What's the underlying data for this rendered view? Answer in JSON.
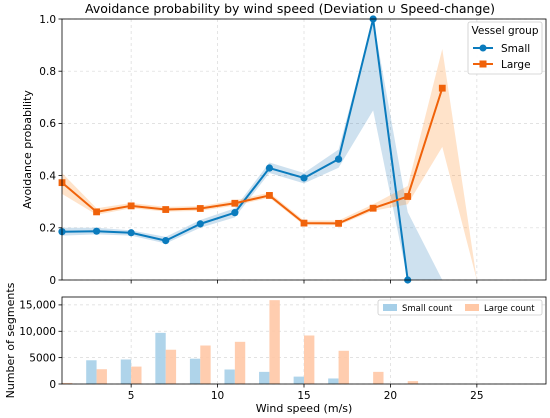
{
  "chart_data": [
    {
      "type": "line",
      "title": "Avoidance probability by wind speed (Deviation ∪ Speed-change)",
      "xlabel": "",
      "ylabel": "Avoidance probability",
      "xlim": [
        1,
        29
      ],
      "ylim": [
        0,
        1.0
      ],
      "x_ticks": [
        "5",
        "10",
        "15",
        "20",
        "25"
      ],
      "y_ticks": [
        "0",
        "0.2",
        "0.4",
        "0.6",
        "0.8",
        "1.0"
      ],
      "grid": true,
      "legend": {
        "title": "Vessel group",
        "placement": "top-right"
      },
      "series": [
        {
          "name": "Small",
          "color": "#1f77b4",
          "line_color": "#0a7bbd",
          "marker": "circle",
          "x": [
            1,
            3,
            5,
            7,
            9,
            11,
            13,
            15,
            17,
            19,
            21
          ],
          "values": [
            0.185,
            0.187,
            0.181,
            0.151,
            0.215,
            0.258,
            0.429,
            0.391,
            0.463,
            1.0,
            0.0
          ],
          "ci_x": [
            1,
            3,
            5,
            7,
            9,
            11,
            13,
            15,
            17,
            19,
            21,
            23
          ],
          "ci_lower": [
            0.17,
            0.175,
            0.17,
            0.14,
            0.2,
            0.24,
            0.41,
            0.37,
            0.43,
            0.65,
            0.0,
            0.0
          ],
          "ci_upper": [
            0.2,
            0.2,
            0.19,
            0.165,
            0.23,
            0.275,
            0.45,
            0.41,
            0.5,
            1.0,
            0.26,
            0.0
          ]
        },
        {
          "name": "Large",
          "color": "#ff7f0e",
          "line_color": "#f0620a",
          "marker": "square",
          "x": [
            1,
            3,
            5,
            7,
            9,
            11,
            13,
            15,
            17,
            19,
            21,
            23
          ],
          "values": [
            0.373,
            0.261,
            0.284,
            0.27,
            0.274,
            0.294,
            0.324,
            0.218,
            0.217,
            0.275,
            0.32,
            0.735
          ],
          "ci_x": [
            1,
            3,
            5,
            7,
            9,
            11,
            13,
            15,
            17,
            19,
            21,
            23,
            25
          ],
          "ci_lower": [
            0.33,
            0.25,
            0.275,
            0.262,
            0.265,
            0.285,
            0.315,
            0.21,
            0.21,
            0.265,
            0.29,
            0.51,
            0.0
          ],
          "ci_upper": [
            0.41,
            0.275,
            0.295,
            0.28,
            0.283,
            0.305,
            0.335,
            0.228,
            0.228,
            0.29,
            0.36,
            0.885,
            0.0
          ]
        }
      ]
    },
    {
      "type": "bar",
      "title": "",
      "xlabel": "Wind speed (m/s)",
      "ylabel": "Number of segments",
      "xlim": [
        1,
        29
      ],
      "ylim": [
        0,
        16500
      ],
      "x_ticks": [
        "5",
        "10",
        "15",
        "20",
        "25"
      ],
      "y_ticks": [
        "0",
        "5000",
        "10,000",
        "15,000"
      ],
      "grid": true,
      "legend": {
        "placement": "top-right"
      },
      "x": [
        1,
        3,
        5,
        7,
        9,
        11,
        13,
        15,
        17,
        19,
        21
      ],
      "series": [
        {
          "name": "Small count",
          "color": "#a6cfe8",
          "values": [
            0,
            4500,
            4650,
            9700,
            4800,
            2750,
            2300,
            1400,
            1050,
            0,
            0
          ]
        },
        {
          "name": "Large count",
          "color": "#ffc8a6",
          "values": [
            200,
            2800,
            3300,
            6500,
            7300,
            8000,
            15900,
            9200,
            6300,
            2300,
            550
          ]
        }
      ]
    }
  ]
}
